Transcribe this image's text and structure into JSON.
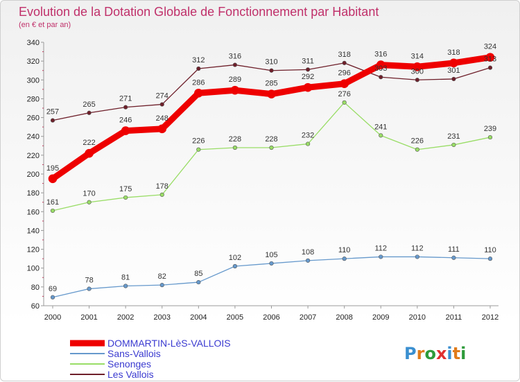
{
  "chart_data": {
    "type": "line",
    "title": "Evolution de la Dotation Globale de Fonctionnement par Habitant",
    "subtitle": "(en € et par an)",
    "categories": [
      "2000",
      "2001",
      "2002",
      "2003",
      "2004",
      "2005",
      "2006",
      "2007",
      "2008",
      "2009",
      "2010",
      "2011",
      "2012"
    ],
    "ylim": [
      60,
      340
    ],
    "yticks": [
      60,
      80,
      100,
      120,
      140,
      160,
      180,
      200,
      220,
      240,
      260,
      280,
      300,
      320,
      340
    ],
    "grid": false,
    "legend_position": "bottom-left",
    "series": [
      {
        "name": "Les Vallois",
        "color": "#6e1f2a",
        "width": 1.3,
        "marker": 2.8,
        "values": [
          257,
          265,
          271,
          274,
          312,
          316,
          310,
          311,
          318,
          303,
          300,
          301,
          313
        ]
      },
      {
        "name": "Senonges",
        "color": "#99dd66",
        "width": 1.3,
        "marker": 2.8,
        "values": [
          161,
          170,
          175,
          178,
          226,
          228,
          228,
          232,
          276,
          241,
          226,
          231,
          239
        ]
      },
      {
        "name": "Sans-Vallois",
        "color": "#6699cc",
        "width": 1.3,
        "marker": 2.8,
        "values": [
          69,
          78,
          81,
          82,
          85,
          102,
          105,
          108,
          110,
          112,
          112,
          111,
          110
        ]
      },
      {
        "name": "DOMMARTIN-LèS-VALLOIS",
        "color": "#ee0000",
        "width": 9,
        "marker": 6,
        "values": [
          195,
          222,
          246,
          248,
          286,
          289,
          285,
          292,
          296,
          316,
          314,
          318,
          324
        ]
      }
    ],
    "legend": [
      "DOMMARTIN-LèS-VALLOIS",
      "Sans-Vallois",
      "Senonges",
      "Les Vallois"
    ]
  },
  "brand": {
    "logo_text": "Proxiti",
    "letter_colors": [
      "#3a8fd0",
      "#e07b1a",
      "#2e9b3a",
      "#e03030",
      "#3a8fd0",
      "#e07b1a",
      "#2e9b3a"
    ]
  },
  "colors": {
    "title": "#c0306a",
    "axis": "#999999",
    "legend_text": "#3a3ad0"
  }
}
